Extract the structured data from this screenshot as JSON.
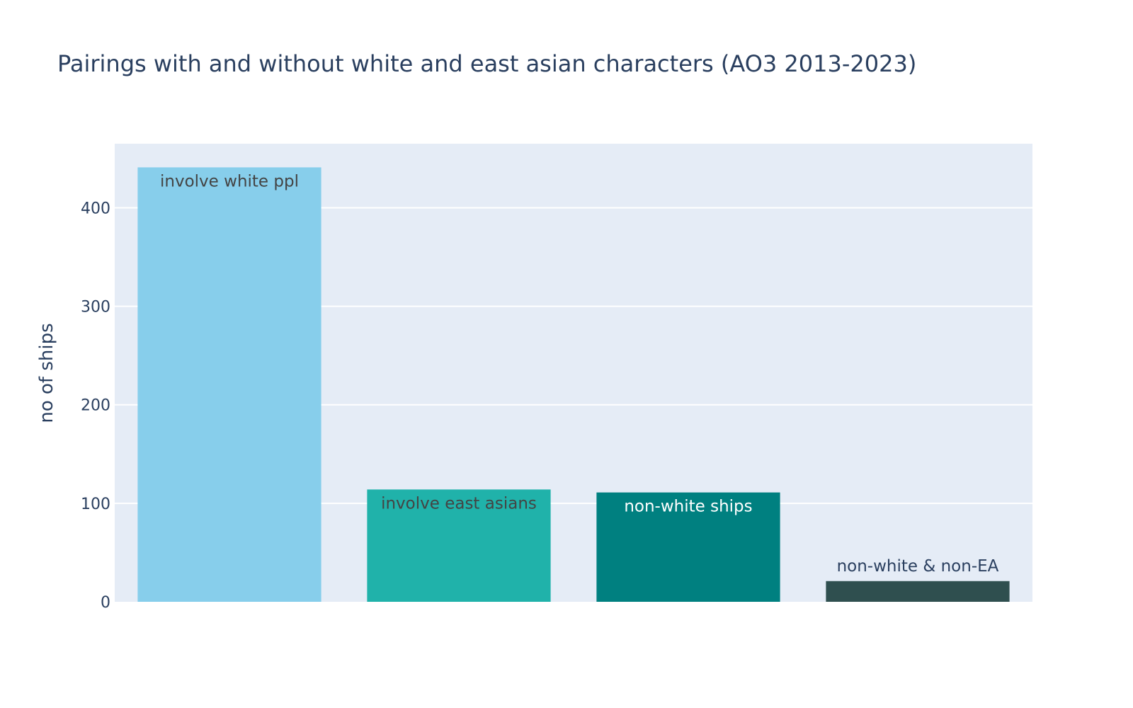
{
  "chart_data": {
    "type": "bar",
    "title": "Pairings with and without white and east asian characters (AO3 2013-2023)",
    "xlabel": "",
    "ylabel": "no of ships",
    "ylim": [
      0,
      465
    ],
    "yticks": [
      0,
      100,
      200,
      300,
      400
    ],
    "grid": true,
    "categories": [
      "involve white ppl",
      "involve east asians",
      "non-white ships",
      "non-white & non-EA"
    ],
    "values": [
      441,
      114,
      111,
      21
    ],
    "colors": [
      "#87ceeb",
      "#20b2aa",
      "#008080",
      "#2f4f4f"
    ],
    "label_colors": [
      "#444444",
      "#444444",
      "#ffffff",
      "#2a3f5f"
    ],
    "label_positions": [
      "inside",
      "inside",
      "inside",
      "outside"
    ]
  },
  "theme": {
    "plot_background": "#e5ecf6",
    "grid_color": "#ffffff",
    "text_color": "#2a3f5f"
  }
}
